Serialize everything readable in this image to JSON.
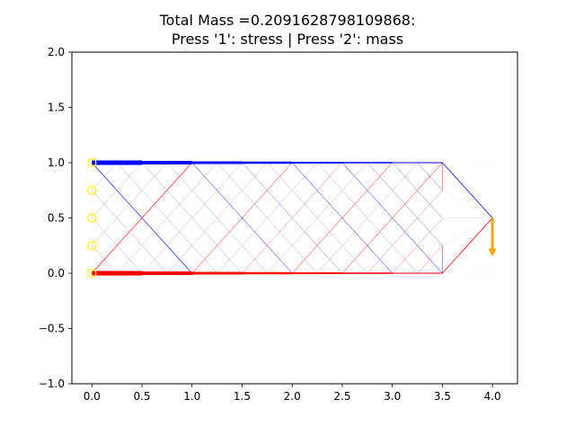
{
  "chart_data": {
    "type": "line",
    "title_line1": "Total Mass =0.2091628798109868:",
    "title_line2": "Press '1': stress | Press '2': mass",
    "xlim": [
      -0.2,
      4.25
    ],
    "ylim": [
      -1.0,
      2.0
    ],
    "xticks": [
      0.0,
      0.5,
      1.0,
      1.5,
      2.0,
      2.5,
      3.0,
      3.5,
      4.0
    ],
    "xtick_labels": [
      "0.0",
      "0.5",
      "1.0",
      "1.5",
      "2.0",
      "2.5",
      "3.0",
      "3.5",
      "4.0"
    ],
    "yticks": [
      -1.0,
      -0.5,
      0.0,
      0.5,
      1.0,
      1.5,
      2.0
    ],
    "ytick_labels": [
      "−1.0",
      "−0.5",
      "0.0",
      "0.5",
      "1.0",
      "1.5",
      "2.0"
    ],
    "grid": false,
    "colors": {
      "compression": "#0000ff",
      "tension": "#ff0000",
      "support": "#ffff00",
      "load": "#ffa500",
      "faint_member": "#ccccff"
    },
    "supports": [
      [
        0,
        0
      ],
      [
        0,
        0.25
      ],
      [
        0,
        0.5
      ],
      [
        0,
        0.75
      ],
      [
        0,
        1.0
      ]
    ],
    "load": {
      "x": 4.0,
      "y": 0.5,
      "dy": -0.35
    },
    "members": [
      {
        "x": [
          0,
          0.5
        ],
        "y": [
          1,
          1
        ],
        "color": "#0000ff",
        "w": 5
      },
      {
        "x": [
          0.5,
          1.0
        ],
        "y": [
          1,
          1
        ],
        "color": "#0000ff",
        "w": 4
      },
      {
        "x": [
          1.0,
          1.5
        ],
        "y": [
          1,
          1
        ],
        "color": "#0000ff",
        "w": 3
      },
      {
        "x": [
          1.5,
          2.0
        ],
        "y": [
          1,
          1
        ],
        "color": "#0000ff",
        "w": 2.5
      },
      {
        "x": [
          2.0,
          2.5
        ],
        "y": [
          1,
          1
        ],
        "color": "#0000ff",
        "w": 2
      },
      {
        "x": [
          2.5,
          3.0
        ],
        "y": [
          1,
          1
        ],
        "color": "#0000ff",
        "w": 1.4
      },
      {
        "x": [
          3.0,
          3.5
        ],
        "y": [
          1,
          1
        ],
        "color": "#0000ff",
        "w": 1
      },
      {
        "x": [
          3.5,
          4.0
        ],
        "y": [
          1,
          0.5
        ],
        "color": "#0000ff",
        "w": 0.8
      },
      {
        "x": [
          0,
          0.5
        ],
        "y": [
          0,
          0
        ],
        "color": "#ff0000",
        "w": 5
      },
      {
        "x": [
          0.5,
          1.0
        ],
        "y": [
          0,
          0
        ],
        "color": "#ff0000",
        "w": 4
      },
      {
        "x": [
          1.0,
          1.5
        ],
        "y": [
          0,
          0
        ],
        "color": "#ff0000",
        "w": 3
      },
      {
        "x": [
          1.5,
          2.0
        ],
        "y": [
          0,
          0
        ],
        "color": "#ff0000",
        "w": 2.5
      },
      {
        "x": [
          2.0,
          2.5
        ],
        "y": [
          0,
          0
        ],
        "color": "#ff0000",
        "w": 2
      },
      {
        "x": [
          2.5,
          3.0
        ],
        "y": [
          0,
          0
        ],
        "color": "#ff0000",
        "w": 1.4
      },
      {
        "x": [
          3.0,
          3.5
        ],
        "y": [
          0,
          0
        ],
        "color": "#ff0000",
        "w": 1
      },
      {
        "x": [
          3.5,
          4.0
        ],
        "y": [
          0,
          0.5
        ],
        "color": "#ff0000",
        "w": 0.8
      },
      {
        "x": [
          0,
          1.0
        ],
        "y": [
          1,
          0
        ],
        "color": "#0000ff",
        "w": 0.6
      },
      {
        "x": [
          0,
          1.0
        ],
        "y": [
          0,
          1
        ],
        "color": "#ff0000",
        "w": 0.6
      },
      {
        "x": [
          0.25,
          1.25
        ],
        "y": [
          1,
          0
        ],
        "color": "#0000ff",
        "w": 0.2
      },
      {
        "x": [
          0.5,
          1.5
        ],
        "y": [
          1,
          0
        ],
        "color": "#0000ff",
        "w": 0.2
      },
      {
        "x": [
          0.75,
          1.75
        ],
        "y": [
          1,
          0
        ],
        "color": "#0000ff",
        "w": 0.2
      },
      {
        "x": [
          1.0,
          2.0
        ],
        "y": [
          1,
          0
        ],
        "color": "#0000ff",
        "w": 0.5
      },
      {
        "x": [
          1.25,
          2.25
        ],
        "y": [
          1,
          0
        ],
        "color": "#0000ff",
        "w": 0.2
      },
      {
        "x": [
          1.5,
          2.5
        ],
        "y": [
          1,
          0
        ],
        "color": "#0000ff",
        "w": 0.3
      },
      {
        "x": [
          1.75,
          2.75
        ],
        "y": [
          1,
          0
        ],
        "color": "#0000ff",
        "w": 0.2
      },
      {
        "x": [
          2.0,
          3.0
        ],
        "y": [
          1,
          0
        ],
        "color": "#0000ff",
        "w": 0.5
      },
      {
        "x": [
          2.25,
          3.25
        ],
        "y": [
          1,
          0
        ],
        "color": "#0000ff",
        "w": 0.2
      },
      {
        "x": [
          2.5,
          3.5
        ],
        "y": [
          1,
          0
        ],
        "color": "#0000ff",
        "w": 0.5
      },
      {
        "x": [
          2.75,
          3.5
        ],
        "y": [
          1,
          0.25
        ],
        "color": "#0000ff",
        "w": 0.3
      },
      {
        "x": [
          3.0,
          3.5
        ],
        "y": [
          1,
          0.5
        ],
        "color": "#0000ff",
        "w": 0.3
      },
      {
        "x": [
          3.25,
          3.5
        ],
        "y": [
          1,
          0.75
        ],
        "color": "#0000ff",
        "w": 0.3
      },
      {
        "x": [
          0.25,
          1.25
        ],
        "y": [
          0,
          1
        ],
        "color": "#ff0000",
        "w": 0.2
      },
      {
        "x": [
          0.5,
          1.5
        ],
        "y": [
          0,
          1
        ],
        "color": "#ff0000",
        "w": 0.2
      },
      {
        "x": [
          0.75,
          1.75
        ],
        "y": [
          0,
          1
        ],
        "color": "#ff0000",
        "w": 0.2
      },
      {
        "x": [
          1.0,
          2.0
        ],
        "y": [
          0,
          1
        ],
        "color": "#ff0000",
        "w": 0.5
      },
      {
        "x": [
          1.25,
          2.25
        ],
        "y": [
          0,
          1
        ],
        "color": "#ff0000",
        "w": 0.2
      },
      {
        "x": [
          1.5,
          2.5
        ],
        "y": [
          0,
          1
        ],
        "color": "#ff0000",
        "w": 0.3
      },
      {
        "x": [
          1.75,
          2.75
        ],
        "y": [
          0,
          1
        ],
        "color": "#ff0000",
        "w": 0.2
      },
      {
        "x": [
          2.0,
          3.0
        ],
        "y": [
          0,
          1
        ],
        "color": "#ff0000",
        "w": 0.5
      },
      {
        "x": [
          2.25,
          3.25
        ],
        "y": [
          0,
          1
        ],
        "color": "#ff0000",
        "w": 0.2
      },
      {
        "x": [
          2.5,
          3.5
        ],
        "y": [
          0,
          1
        ],
        "color": "#ff0000",
        "w": 0.5
      },
      {
        "x": [
          2.75,
          3.5
        ],
        "y": [
          0,
          0.75
        ],
        "color": "#ff0000",
        "w": 0.3
      },
      {
        "x": [
          3.0,
          3.5
        ],
        "y": [
          0,
          0.5
        ],
        "color": "#ff0000",
        "w": 0.3
      },
      {
        "x": [
          3.25,
          3.5
        ],
        "y": [
          0,
          0.25
        ],
        "color": "#ff0000",
        "w": 0.3
      },
      {
        "x": [
          0,
          0.25
        ],
        "y": [
          0.75,
          1
        ],
        "color": "#ff0000",
        "w": 0.2
      },
      {
        "x": [
          0,
          0.5
        ],
        "y": [
          0.5,
          1
        ],
        "color": "#ff0000",
        "w": 0.2
      },
      {
        "x": [
          0,
          0.75
        ],
        "y": [
          0.25,
          1
        ],
        "color": "#ff0000",
        "w": 0.2
      },
      {
        "x": [
          0,
          0.25
        ],
        "y": [
          0.25,
          0
        ],
        "color": "#0000ff",
        "w": 0.2
      },
      {
        "x": [
          0,
          0.5
        ],
        "y": [
          0.5,
          0
        ],
        "color": "#0000ff",
        "w": 0.2
      },
      {
        "x": [
          0,
          0.75
        ],
        "y": [
          0.75,
          0
        ],
        "color": "#0000ff",
        "w": 0.2
      },
      {
        "x": [
          3.5,
          3.5
        ],
        "y": [
          1,
          0.75
        ],
        "color": "#ff0000",
        "w": 0.4
      },
      {
        "x": [
          3.5,
          3.5
        ],
        "y": [
          0,
          0.25
        ],
        "color": "#0000ff",
        "w": 0.4
      },
      {
        "x": [
          3.5,
          4.0
        ],
        "y": [
          0.5,
          0.5
        ],
        "color": "#ccccff",
        "w": 0.3
      },
      {
        "x": [
          3.5,
          4.0
        ],
        "y": [
          0.25,
          0.5
        ],
        "color": "#ccccff",
        "w": 0.3
      },
      {
        "x": [
          3.5,
          4.0
        ],
        "y": [
          0.75,
          0.5
        ],
        "color": "#ccccff",
        "w": 0.3
      },
      {
        "x": [
          3.75,
          4.0
        ],
        "y": [
          1,
          1
        ],
        "color": "#eeeeff",
        "w": 0.3
      },
      {
        "x": [
          3.75,
          4.0
        ],
        "y": [
          0,
          0
        ],
        "color": "#eeeeff",
        "w": 0.3
      },
      {
        "x": [
          0,
          3.5
        ],
        "y": [
          0.5,
          0.5
        ],
        "color": "#eeeeff",
        "w": 0.3
      },
      {
        "x": [
          0,
          3.5
        ],
        "y": [
          0.25,
          0.25
        ],
        "color": "#f2f2ff",
        "w": 0.3
      },
      {
        "x": [
          0,
          3.5
        ],
        "y": [
          0.75,
          0.75
        ],
        "color": "#f2f2ff",
        "w": 0.3
      }
    ]
  }
}
